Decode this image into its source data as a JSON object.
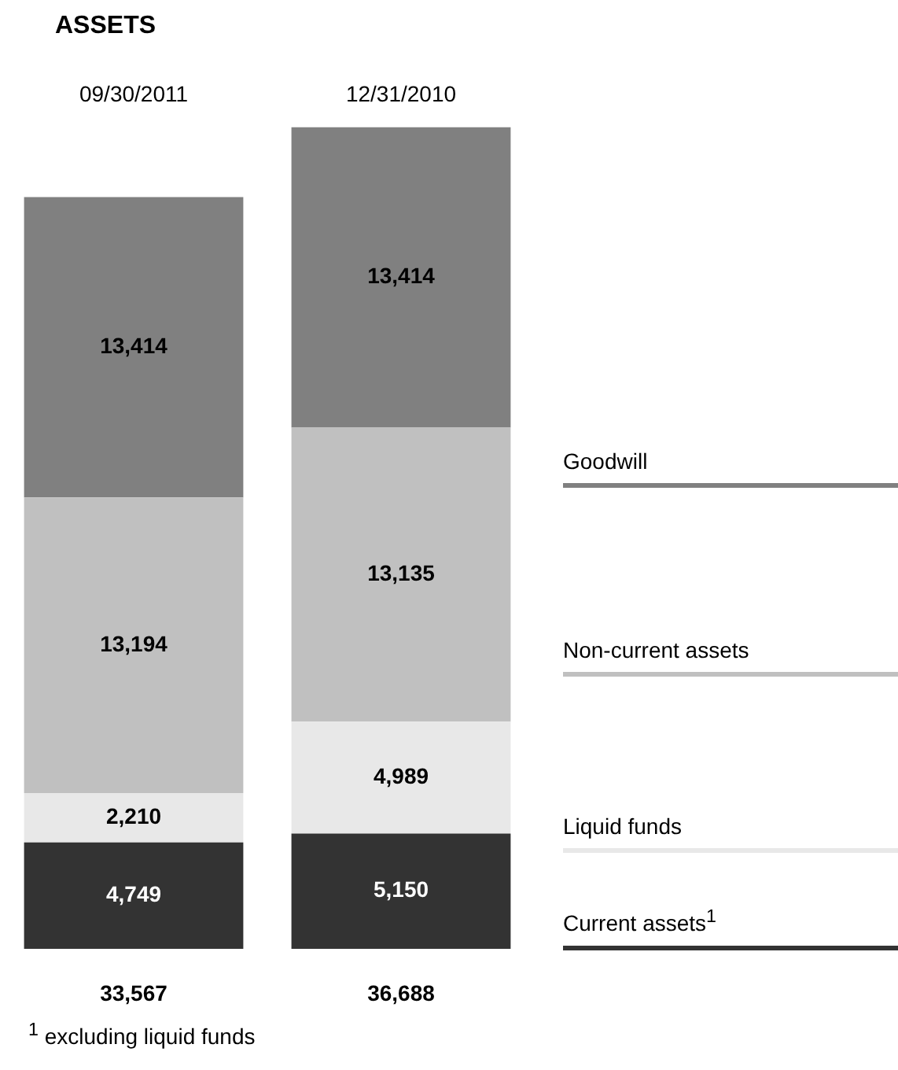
{
  "chart_data": {
    "type": "bar",
    "title": "ASSETS",
    "categories": [
      "09/30/2011",
      "12/31/2010"
    ],
    "series": [
      {
        "name": "Current assets$^{1}$",
        "color": "#333333",
        "values": [
          4749,
          5150
        ],
        "value_labels": [
          "4,749",
          "5,150"
        ]
      },
      {
        "name": "Liquid funds",
        "color": "#e8e8e8",
        "values": [
          2210,
          4989
        ],
        "value_labels": [
          "2,210",
          "4,989"
        ]
      },
      {
        "name": "Non-current assets",
        "color": "#c0c0c0",
        "values": [
          13194,
          13135
        ],
        "value_labels": [
          "13,194",
          "13,135"
        ]
      },
      {
        "name": "Goodwill",
        "color": "#808080",
        "values": [
          13414,
          13414
        ],
        "value_labels": [
          "13,414",
          "13,414"
        ]
      }
    ],
    "stacked": true,
    "totals": [
      "33,567",
      "36,688"
    ],
    "legend": "right",
    "annotations": [
      "$^{1}$ excluding liquid funds"
    ]
  }
}
